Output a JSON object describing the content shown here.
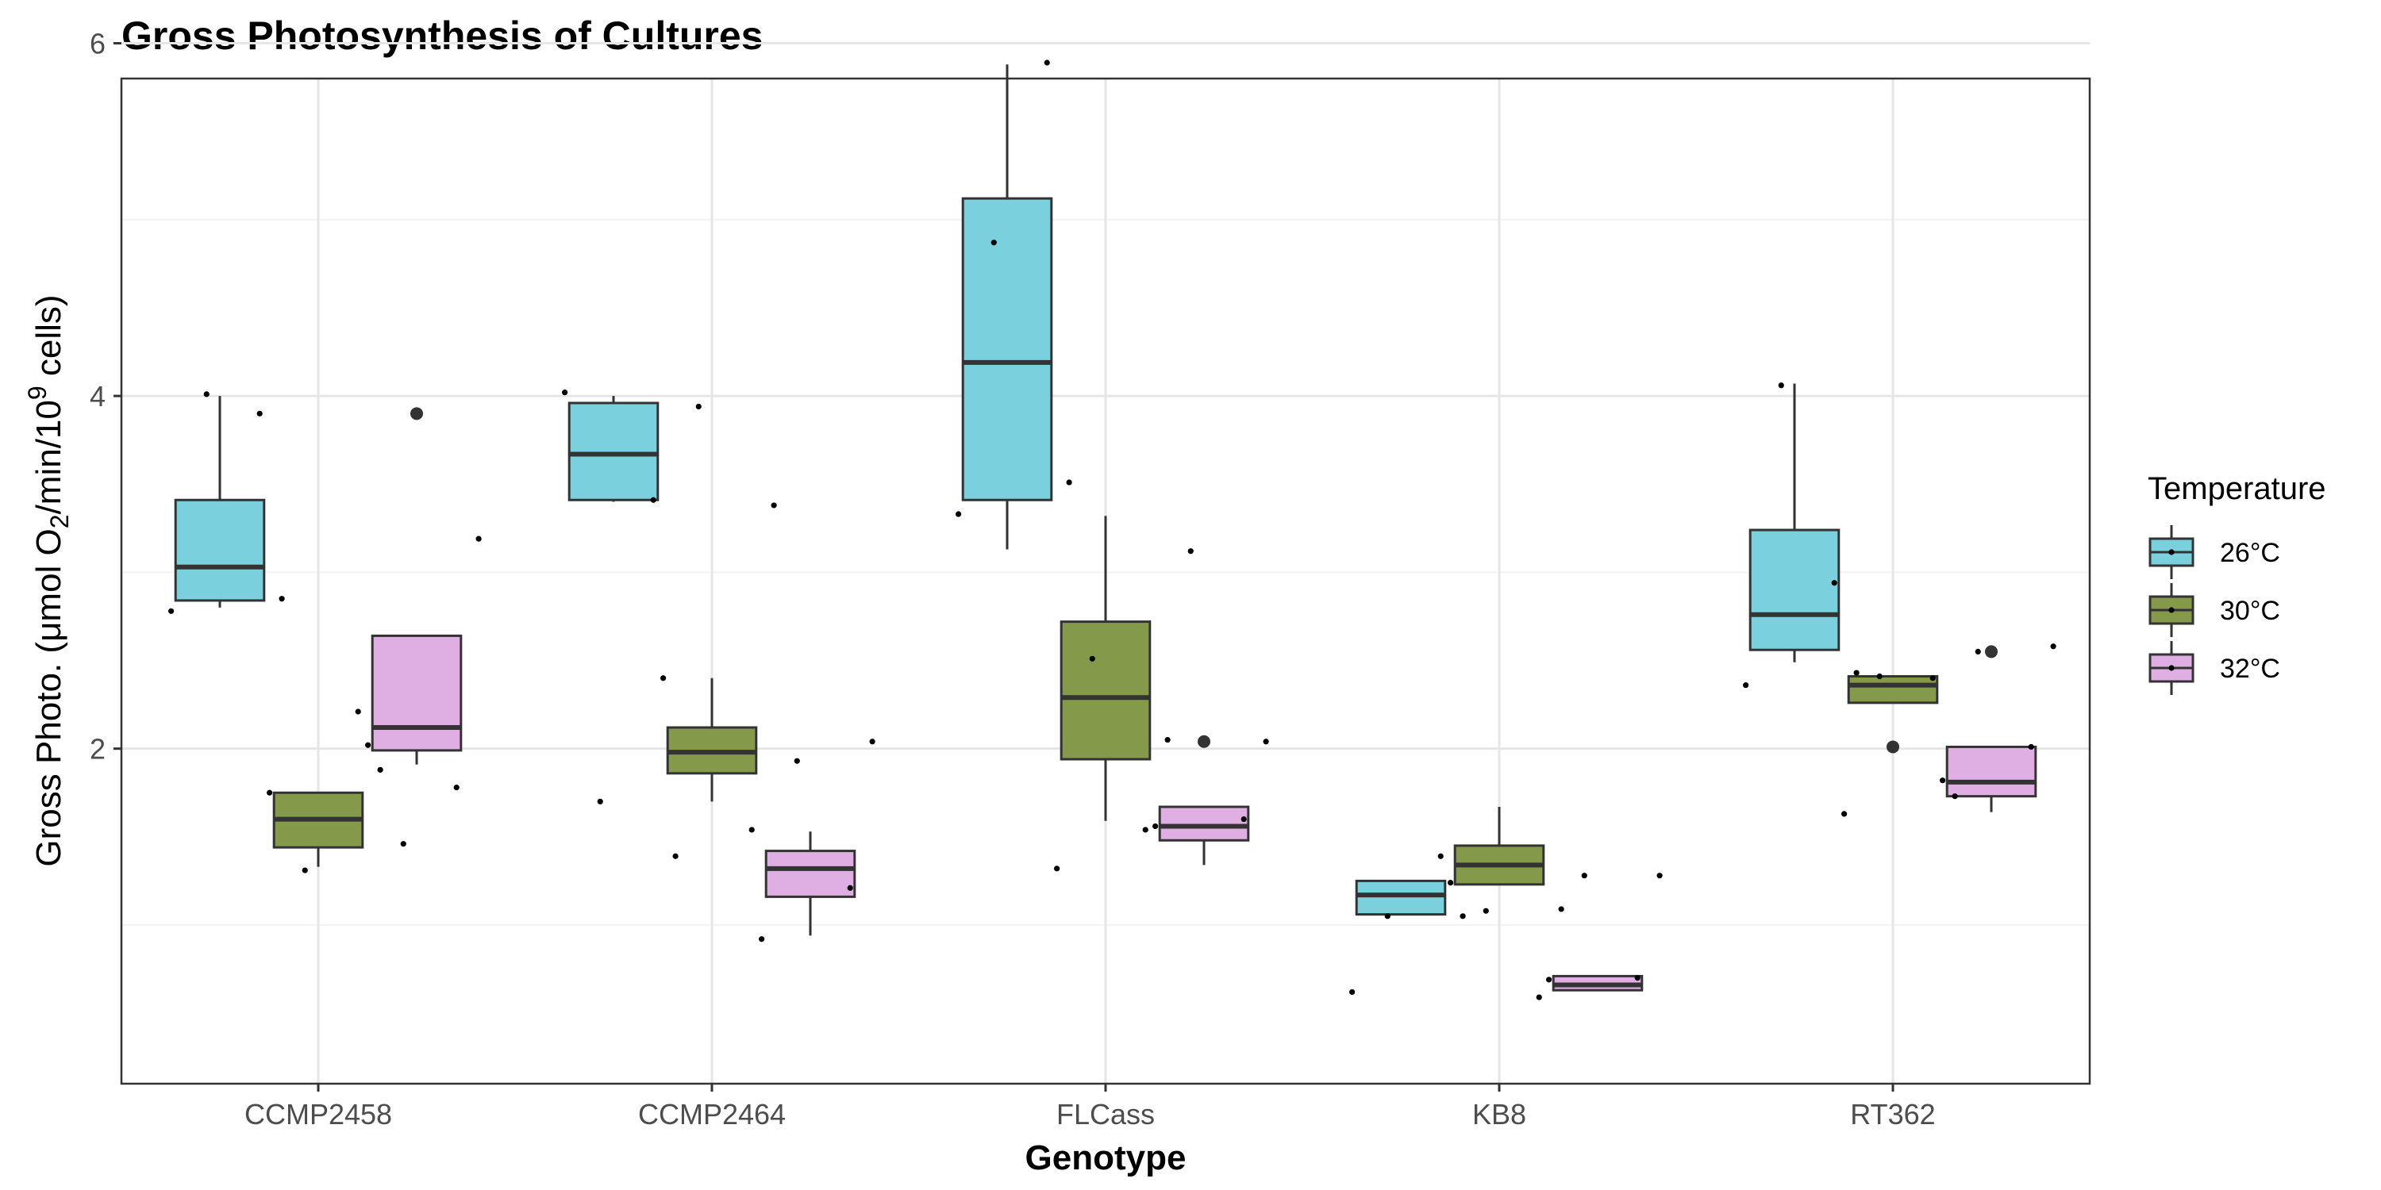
{
  "chart_data": {
    "type": "boxplot",
    "title": "Gross Photosynthesis of Cultures",
    "xlabel": "Genotype",
    "ylabel": {
      "prefix": "Gross Photo. (μmol O",
      "sub": "2",
      "middle": "/min/10",
      "sup": "9",
      "suffix": " cells)"
    },
    "categories": [
      "CCMP2458",
      "CCMP2464",
      "FLCass",
      "KB8",
      "RT362"
    ],
    "ylim": [
      0.1,
      5.8
    ],
    "yticks": [
      2,
      4,
      6
    ],
    "yticks_minor": [
      1,
      3,
      5
    ],
    "grid": true,
    "legend": {
      "title": "Temperature",
      "position": "right"
    },
    "series": [
      {
        "name": "26°C",
        "color": "#7ad1dd",
        "boxes": [
          {
            "lower": 2.8,
            "q1": 2.84,
            "median": 3.03,
            "q3": 3.41,
            "upper": 4.0
          },
          {
            "lower": 3.4,
            "q1": 3.41,
            "median": 3.67,
            "q3": 3.96,
            "upper": 4.0
          },
          {
            "lower": 3.13,
            "q1": 3.41,
            "median": 4.19,
            "q3": 5.12,
            "upper": 5.88
          },
          {
            "lower": 1.06,
            "q1": 1.06,
            "median": 1.17,
            "q3": 1.25,
            "upper": 1.25
          },
          {
            "lower": 2.49,
            "q1": 2.56,
            "median": 2.76,
            "q3": 3.24,
            "upper": 4.07
          }
        ],
        "outliers": [
          [],
          [],
          [],
          [],
          []
        ],
        "points": [
          [
            2.78,
            3.9,
            4.01,
            2.85
          ],
          [
            4.02,
            3.41,
            1.7,
            1.39
          ],
          [
            3.33,
            5.89,
            4.87,
            3.51
          ],
          [
            0.62,
            1.39,
            1.05,
            1.05
          ],
          [
            2.36,
            2.94,
            4.06,
            2.43
          ]
        ]
      },
      {
        "name": "30°C",
        "color": "#85994a",
        "boxes": [
          {
            "lower": 1.33,
            "q1": 1.44,
            "median": 1.6,
            "q3": 1.75,
            "upper": 1.75
          },
          {
            "lower": 1.7,
            "q1": 1.86,
            "median": 1.98,
            "q3": 2.12,
            "upper": 2.4
          },
          {
            "lower": 1.59,
            "q1": 1.94,
            "median": 2.29,
            "q3": 2.72,
            "upper": 3.32
          },
          {
            "lower": 1.23,
            "q1": 1.23,
            "median": 1.34,
            "q3": 1.45,
            "upper": 1.67
          },
          {
            "lower": 2.26,
            "q1": 2.26,
            "median": 2.36,
            "q3": 2.41,
            "upper": 2.41
          }
        ],
        "outliers": [
          [],
          [],
          [],
          [],
          [
            2.01
          ]
        ],
        "points": [
          [
            1.75,
            2.21,
            1.31,
            1.88
          ],
          [
            2.4,
            1.54,
            3.94,
            3.38
          ],
          [
            1.32,
            1.54,
            2.51,
            2.05
          ],
          [
            1.24,
            0.59,
            1.08,
            1.09
          ],
          [
            1.63,
            2.4,
            2.41,
            1.73
          ]
        ]
      },
      {
        "name": "32°C",
        "color": "#dfaee3",
        "boxes": [
          {
            "lower": 1.91,
            "q1": 1.99,
            "median": 2.12,
            "q3": 2.64,
            "upper": 2.64
          },
          {
            "lower": 0.94,
            "q1": 1.16,
            "median": 1.32,
            "q3": 1.42,
            "upper": 1.53
          },
          {
            "lower": 1.34,
            "q1": 1.48,
            "median": 1.56,
            "q3": 1.67,
            "upper": 1.67
          },
          {
            "lower": 0.63,
            "q1": 0.63,
            "median": 0.66,
            "q3": 0.71,
            "upper": 0.71
          },
          {
            "lower": 1.64,
            "q1": 1.73,
            "median": 1.81,
            "q3": 2.01,
            "upper": 2.01
          }
        ],
        "outliers": [
          [
            3.9
          ],
          [],
          [
            2.04
          ],
          [],
          [
            2.55
          ]
        ],
        "points": [
          [
            2.02,
            1.78,
            1.46,
            3.19
          ],
          [
            0.92,
            1.21,
            1.93,
            2.04
          ],
          [
            1.56,
            1.6,
            3.12,
            2.04
          ],
          [
            0.69,
            0.7,
            1.28,
            1.28
          ],
          [
            1.82,
            2.01,
            2.55,
            2.58
          ]
        ]
      }
    ]
  }
}
